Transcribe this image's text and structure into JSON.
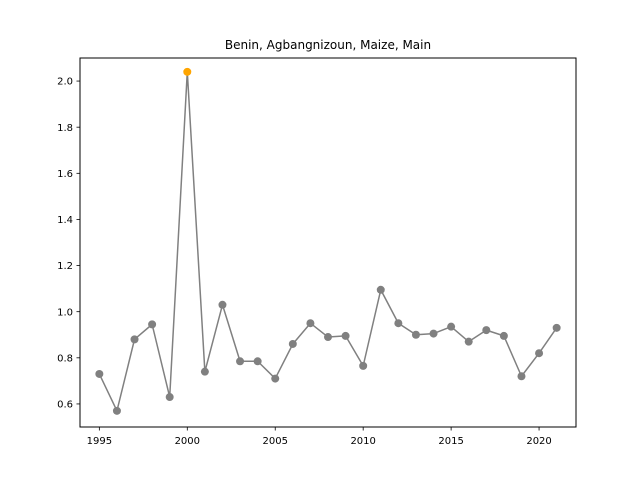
{
  "chart_data": {
    "type": "line",
    "title": "Benin, Agbangnizoun, Maize, Main",
    "xlabel": "",
    "ylabel": "",
    "x": [
      1995,
      1996,
      1997,
      1998,
      1999,
      2000,
      2001,
      2002,
      2003,
      2004,
      2005,
      2006,
      2007,
      2008,
      2009,
      2010,
      2011,
      2012,
      2013,
      2014,
      2015,
      2016,
      2017,
      2018,
      2019,
      2020,
      2021
    ],
    "series": [
      {
        "values": [
          0.73,
          0.57,
          0.88,
          0.945,
          0.63,
          2.04,
          0.74,
          1.03,
          0.785,
          0.785,
          0.71,
          0.86,
          0.95,
          0.89,
          0.895,
          0.765,
          1.095,
          0.95,
          0.9,
          0.905,
          0.935,
          0.87,
          0.92,
          0.895,
          0.72,
          0.82,
          0.93
        ]
      }
    ],
    "xlim": [
      1993.9,
      2022.1
    ],
    "ylim": [
      0.5,
      2.1
    ],
    "xticks": [
      1995,
      2000,
      2005,
      2010,
      2015,
      2020
    ],
    "xtick_labels": [
      "1995",
      "2000",
      "2005",
      "2010",
      "2015",
      "2020"
    ],
    "yticks": [
      0.6,
      0.8,
      1.0,
      1.2,
      1.4,
      1.6,
      1.8,
      2.0
    ],
    "ytick_labels": [
      "0.6",
      "0.8",
      "1.0",
      "1.2",
      "1.4",
      "1.6",
      "1.8",
      "2.0"
    ],
    "highlight_x": [
      2000
    ],
    "colors": {
      "line": "#808080",
      "marker": "#808080",
      "highlight": "#ffa500"
    },
    "grid": false,
    "legend": "none"
  }
}
